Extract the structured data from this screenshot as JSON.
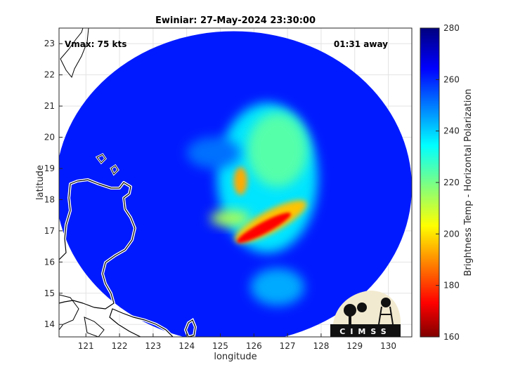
{
  "chart_data": {
    "type": "heatmap",
    "title": "Ewiniar: 27-May-2024 23:30:00",
    "xlabel": "longitude",
    "ylabel": "latitude",
    "xlim": [
      120.2,
      130.7
    ],
    "ylim": [
      13.6,
      23.5
    ],
    "x_ticks": [
      121,
      122,
      123,
      124,
      125,
      126,
      127,
      128,
      129,
      130
    ],
    "y_ticks": [
      14,
      15,
      16,
      17,
      18,
      19,
      20,
      21,
      22,
      23
    ],
    "grid": true,
    "annotations": {
      "vmax": "Vmax: 75 kts",
      "time_away": "01:31 away"
    },
    "colorbar": {
      "label": "Brightness Temp - Horizontal Polarization",
      "min": 160,
      "max": 280,
      "ticks": [
        160,
        180,
        200,
        220,
        240,
        260,
        280
      ],
      "colormap": "jet"
    },
    "swath": {
      "center_lon": 125.4,
      "center_lat": 18.4,
      "radius_deg_lon": 5.3,
      "radius_deg_lat": 5.0
    },
    "background_temp": 262,
    "features": [
      {
        "kind": "spiral_band",
        "lon": 126.4,
        "lat": 18.7,
        "rx": 1.5,
        "ry": 2.4,
        "temp": 238
      },
      {
        "kind": "spiral_band",
        "lon": 126.7,
        "lat": 19.6,
        "rx": 0.9,
        "ry": 1.2,
        "temp": 225
      },
      {
        "kind": "rain_band",
        "lon": 126.5,
        "lat": 17.3,
        "rx": 1.2,
        "ry": 0.35,
        "temp": 198
      },
      {
        "kind": "eyewall_core",
        "lon": 126.3,
        "lat": 17.1,
        "rx": 0.9,
        "ry": 0.18,
        "temp": 175
      },
      {
        "kind": "eyewall_arc",
        "lon": 125.6,
        "lat": 18.6,
        "rx": 0.2,
        "ry": 0.45,
        "temp": 195
      },
      {
        "kind": "outer_band",
        "lon": 125.3,
        "lat": 17.4,
        "rx": 0.6,
        "ry": 0.25,
        "temp": 215
      },
      {
        "kind": "south_band",
        "lon": 126.7,
        "lat": 15.2,
        "rx": 0.8,
        "ry": 0.6,
        "temp": 245
      },
      {
        "kind": "cold_cloud",
        "lon": 124.8,
        "lat": 19.5,
        "rx": 0.8,
        "ry": 0.5,
        "temp": 252
      }
    ]
  },
  "logo": {
    "text": "CIMSS"
  }
}
